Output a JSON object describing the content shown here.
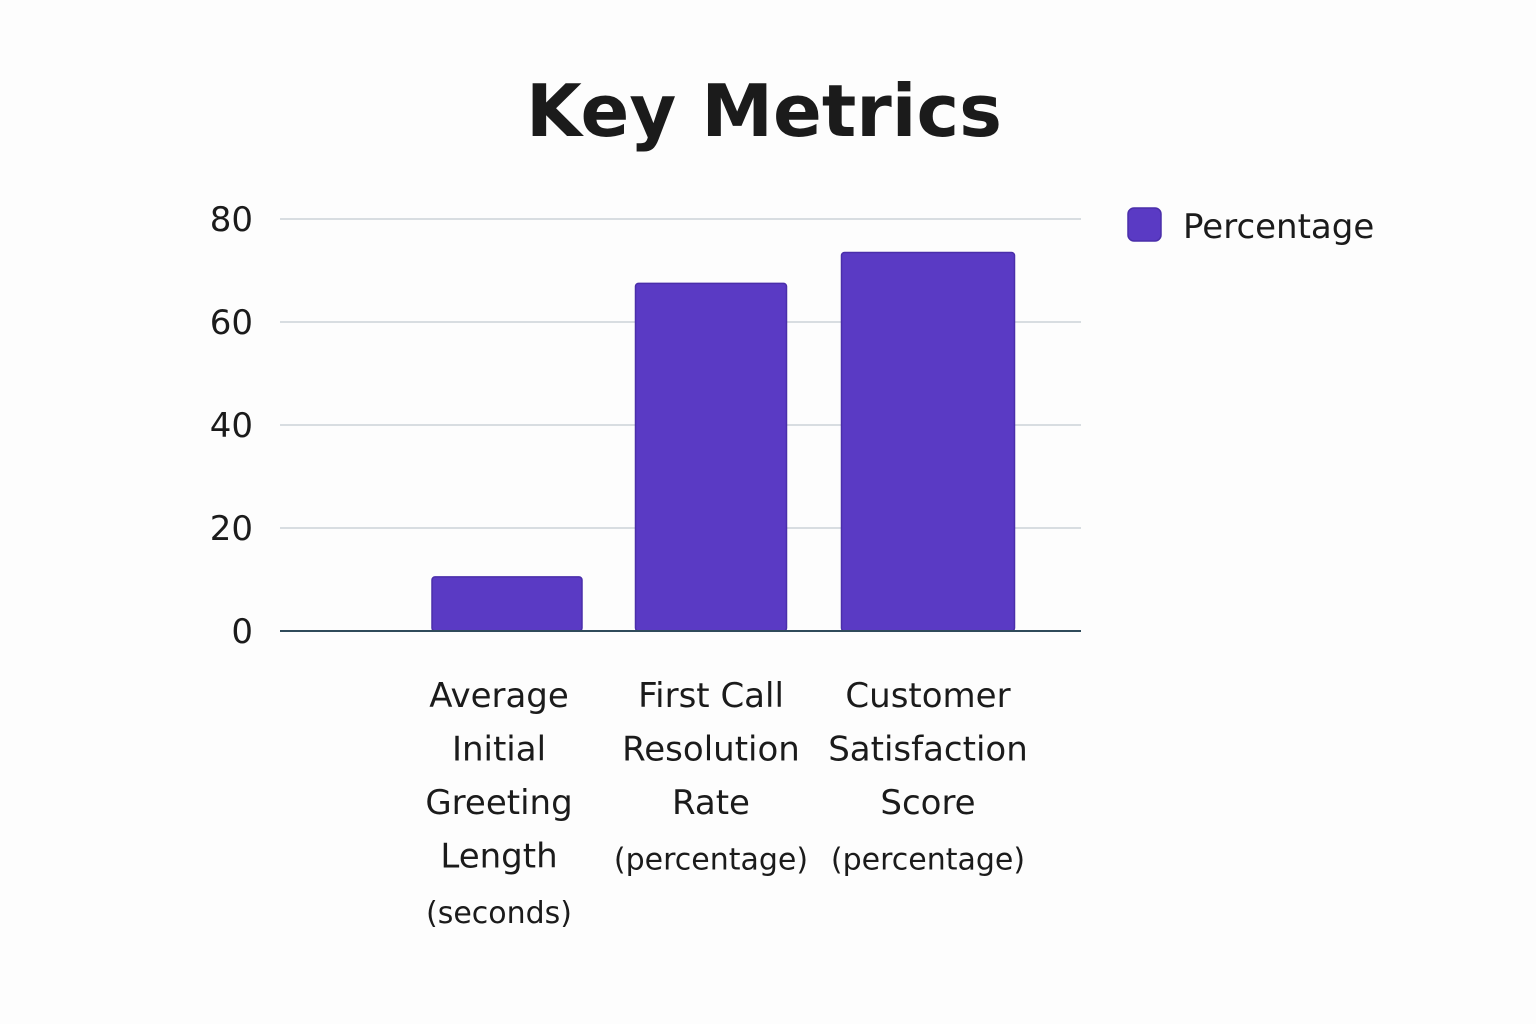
{
  "colors": {
    "bar": "#5a3ac4",
    "bar_stroke": "#4a2eaa",
    "grid": "#d8dde1",
    "axis": "#2f4a5a",
    "background": "#fdfdfd"
  },
  "chart_data": {
    "type": "bar",
    "title": "Key Metrics",
    "xlabel": "",
    "ylabel": "",
    "ylim": [
      0,
      80
    ],
    "yticks": [
      "80",
      "60",
      "40",
      "20",
      "0"
    ],
    "ytick_values": [
      80,
      60,
      40,
      20,
      0
    ],
    "grid": true,
    "legend_position": "top-right",
    "categories": [
      "Average Initial Greeting Length (seconds)",
      "First Call Resolution Rate (percentage)",
      "Customer Satisfaction Score (percentage)"
    ],
    "category_label_lines": [
      [
        "Average",
        "Initial",
        "Greeting",
        "Length"
      ],
      [
        "First Call",
        "Resolution",
        "Rate"
      ],
      [
        "Customer",
        "Satisfaction",
        "Score"
      ]
    ],
    "category_label_subtitles": [
      "(seconds)",
      "(percentage)",
      "(percentage)"
    ],
    "series": [
      {
        "name": "Percentage",
        "values": [
          10.5,
          67.5,
          73.5
        ]
      }
    ]
  }
}
